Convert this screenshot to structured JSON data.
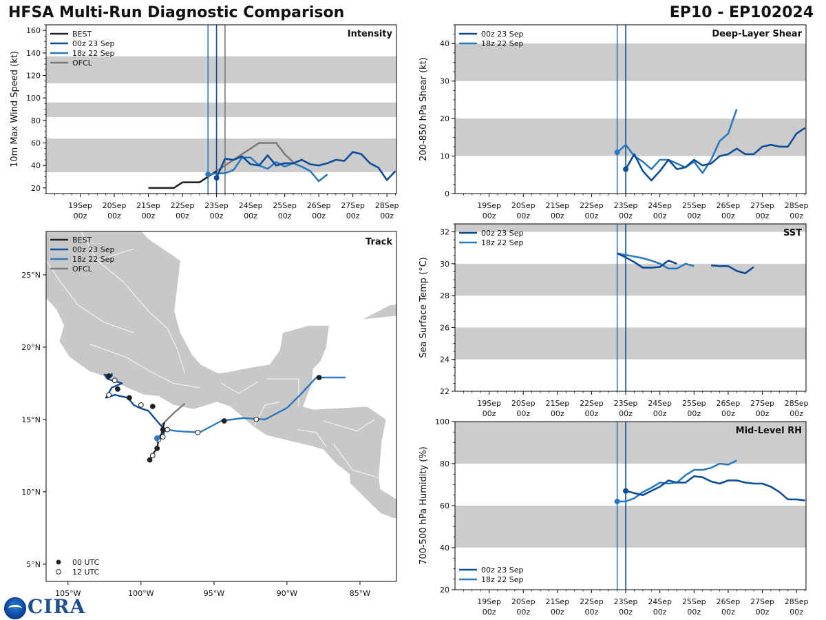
{
  "header": {
    "title": "HFSA Multi-Run Diagnostic Comparison",
    "storm_id": "EP10 - EP102024"
  },
  "colors": {
    "best": "#222222",
    "run00z": "#0b4c9a",
    "run18z": "#2a78bf",
    "ofcl": "#7a7a7a",
    "band": "#cccccc",
    "land": "#c8c8c8"
  },
  "time_axis": {
    "ticks": [
      {
        "day": 19,
        "top": "19Sep",
        "bottom": "00z"
      },
      {
        "day": 20,
        "top": "20Sep",
        "bottom": "00z"
      },
      {
        "day": 21,
        "top": "21Sep",
        "bottom": "00z"
      },
      {
        "day": 22,
        "top": "22Sep",
        "bottom": "00z"
      },
      {
        "day": 23,
        "top": "23Sep",
        "bottom": "00z"
      },
      {
        "day": 24,
        "top": "24Sep",
        "bottom": "00z"
      },
      {
        "day": 25,
        "top": "25Sep",
        "bottom": "00z"
      },
      {
        "day": 26,
        "top": "26Sep",
        "bottom": "00z"
      },
      {
        "day": 27,
        "top": "27Sep",
        "bottom": "00z"
      },
      {
        "day": 28,
        "top": "28Sep",
        "bottom": "00z"
      }
    ],
    "xlim": [
      18.0,
      28.28
    ],
    "init_18z": 22.75,
    "init_00z": 23.0,
    "init_ofcl": 23.25
  },
  "legend_labels": {
    "best": "BEST",
    "run00z": "00z 23 Sep",
    "run18z": "18z 22 Sep",
    "ofcl": "OFCL"
  },
  "chart_data": [
    {
      "id": "intensity",
      "type": "line",
      "title": "Intensity",
      "ylabel": "10m Max Wind Speed (kt)",
      "ylim": [
        15,
        165
      ],
      "yticks": [
        20,
        40,
        60,
        80,
        100,
        120,
        140,
        160
      ],
      "bands": [
        [
          34,
          64
        ],
        [
          83,
          96
        ],
        [
          113,
          137
        ]
      ],
      "series": [
        {
          "name": "BEST",
          "key": "best",
          "x": [
            21.0,
            21.25,
            21.5,
            21.75,
            22.0,
            22.25,
            22.5,
            22.75,
            23.0
          ],
          "y": [
            20,
            20,
            20,
            20,
            25,
            25,
            25,
            30,
            35
          ]
        },
        {
          "name": "00z 23 Sep",
          "key": "run00z",
          "x": [
            23.0,
            23.25,
            23.5,
            23.75,
            24.0,
            24.25,
            24.5,
            24.75,
            25.0,
            25.25,
            25.5,
            25.75,
            26.0,
            26.25,
            26.5,
            26.75,
            27.0,
            27.25,
            27.5,
            27.75,
            28.0,
            28.25
          ],
          "y": [
            29,
            46,
            45,
            48,
            41,
            40,
            49,
            40,
            42,
            42,
            45,
            41,
            40,
            42,
            45,
            44,
            52,
            50,
            42,
            38,
            27,
            35
          ],
          "marker": {
            "x": 23.0,
            "y": 29
          }
        },
        {
          "name": "18z 22 Sep",
          "key": "run18z",
          "x": [
            22.75,
            23.0,
            23.25,
            23.5,
            23.75,
            24.0,
            24.25,
            24.5,
            24.75,
            25.0,
            25.25,
            25.5,
            25.75,
            26.0,
            26.25
          ],
          "y": [
            32,
            33,
            33,
            36,
            47,
            47,
            40,
            37,
            43,
            39,
            42,
            39,
            35,
            26,
            32
          ],
          "marker": {
            "x": 22.75,
            "y": 32
          }
        },
        {
          "name": "OFCL",
          "key": "ofcl",
          "x": [
            23.0,
            23.25,
            23.5,
            23.75,
            24.0,
            24.25,
            24.5,
            24.75,
            25.0,
            25.25
          ],
          "y": [
            35,
            40,
            45,
            50,
            55,
            60,
            60,
            60,
            50,
            43
          ]
        }
      ]
    },
    {
      "id": "shear",
      "type": "line",
      "title": "Deep-Layer Shear",
      "ylabel": "200-850 hPa Shear (kt)",
      "ylim": [
        0,
        45
      ],
      "yticks": [
        0,
        10,
        20,
        30,
        40
      ],
      "bands": [
        [
          10,
          20
        ],
        [
          30,
          40
        ]
      ],
      "series": [
        {
          "name": "00z 23 Sep",
          "key": "run00z",
          "x": [
            23.0,
            23.25,
            23.5,
            23.75,
            24.0,
            24.25,
            24.5,
            24.75,
            25.0,
            25.25,
            25.5,
            25.75,
            26.0,
            26.25,
            26.5,
            26.75,
            27.0,
            27.25,
            27.5,
            27.75,
            28.0,
            28.25
          ],
          "y": [
            6.5,
            10.5,
            6,
            3.5,
            6,
            9,
            6.5,
            7,
            9,
            7.5,
            8,
            10,
            10.5,
            12,
            10.5,
            10.5,
            12.5,
            13,
            12.5,
            12.5,
            16,
            17.5
          ],
          "marker": {
            "x": 23.0,
            "y": 6.5
          }
        },
        {
          "name": "18z 22 Sep",
          "key": "run18z",
          "x": [
            22.75,
            23.0,
            23.25,
            23.5,
            23.75,
            24.0,
            24.25,
            24.5,
            24.75,
            25.0,
            25.25,
            25.5,
            25.75,
            26.0,
            26.25
          ],
          "y": [
            11,
            13,
            10,
            8.5,
            6.5,
            9,
            9,
            8,
            7,
            8.5,
            5.5,
            9,
            14,
            16,
            22.5
          ],
          "marker": {
            "x": 22.75,
            "y": 11
          }
        }
      ]
    },
    {
      "id": "sst",
      "type": "line",
      "title": "SST",
      "ylabel": "Sea Surface Temp (°C)",
      "ylim": [
        22,
        32.5
      ],
      "yticks": [
        22,
        24,
        26,
        28,
        30,
        32
      ],
      "bands": [
        [
          24,
          26
        ],
        [
          28,
          30
        ],
        [
          32,
          32.5
        ]
      ],
      "series": [
        {
          "name": "00z 23 Sep",
          "key": "run00z",
          "x": [
            22.75,
            23.0,
            23.25,
            23.5,
            23.75,
            24.0,
            24.25,
            24.5,
            24.75,
            null,
            25.5,
            25.75,
            26.0,
            26.25,
            26.5,
            26.75
          ],
          "y": [
            30.65,
            30.4,
            30.1,
            29.75,
            29.75,
            29.8,
            30.2,
            30.0,
            null,
            null,
            29.9,
            29.85,
            29.85,
            29.55,
            29.4,
            29.8
          ]
        },
        {
          "name": "18z 22 Sep",
          "key": "run18z",
          "x": [
            22.75,
            23.0,
            23.25,
            23.5,
            23.75,
            24.0,
            24.25,
            24.5,
            24.75,
            25.0
          ],
          "y": [
            30.65,
            30.55,
            30.45,
            30.35,
            30.2,
            30.0,
            29.7,
            29.7,
            30.0,
            29.85
          ]
        }
      ]
    },
    {
      "id": "rh",
      "type": "line",
      "title": "Mid-Level RH",
      "ylabel": "700-500 hPa Humidity (%)",
      "ylim": [
        20,
        100
      ],
      "yticks": [
        20,
        40,
        60,
        80,
        100
      ],
      "bands": [
        [
          40,
          60
        ],
        [
          80,
          100
        ]
      ],
      "series": [
        {
          "name": "00z 23 Sep",
          "key": "run00z",
          "x": [
            23.0,
            23.25,
            23.5,
            23.75,
            24.0,
            24.25,
            24.5,
            24.75,
            25.0,
            25.25,
            25.5,
            25.75,
            26.0,
            26.25,
            26.5,
            26.75,
            27.0,
            27.25,
            27.5,
            27.75,
            28.0,
            28.25
          ],
          "y": [
            67,
            66,
            65,
            67,
            69,
            72,
            71,
            71,
            74,
            73.5,
            71.5,
            70.5,
            72,
            72,
            71,
            70.5,
            70.5,
            69,
            66.5,
            63,
            63,
            62.5
          ],
          "marker": {
            "x": 23.0,
            "y": 67
          }
        },
        {
          "name": "18z 22 Sep",
          "key": "run18z",
          "x": [
            22.75,
            23.0,
            23.25,
            23.5,
            23.75,
            24.0,
            24.25,
            24.5,
            24.75,
            25.0,
            25.25,
            25.5,
            25.75,
            26.0,
            26.25
          ],
          "y": [
            62,
            62,
            63.5,
            66.5,
            68.5,
            71,
            70.5,
            71,
            74.5,
            77,
            77,
            78,
            80,
            79.5,
            81.5
          ],
          "marker": {
            "x": 22.75,
            "y": 62
          }
        }
      ]
    },
    {
      "id": "track",
      "type": "scatter",
      "title": "Track",
      "xlim": [
        -106.5,
        -82.5
      ],
      "ylim": [
        3.8,
        28
      ],
      "xticks": [
        {
          "value": -105,
          "label": "105°W"
        },
        {
          "value": -100,
          "label": "100°W"
        },
        {
          "value": -95,
          "label": "95°W"
        },
        {
          "value": -90,
          "label": "90°W"
        },
        {
          "value": -85,
          "label": "85°W"
        }
      ],
      "yticks": [
        {
          "value": 5,
          "label": "5°N"
        },
        {
          "value": 10,
          "label": "10°N"
        },
        {
          "value": 15,
          "label": "15°N"
        },
        {
          "value": 20,
          "label": "20°N"
        },
        {
          "value": 25,
          "label": "25°N"
        }
      ],
      "marker_legend": {
        "filled": "00 UTC",
        "open": "12 UTC"
      },
      "best": {
        "lon": [
          -99.4,
          -99.2,
          -98.9,
          -98.8,
          -98.6,
          -98.5,
          -98.4
        ],
        "lat": [
          12.2,
          12.6,
          13.0,
          13.6,
          14.0,
          14.4,
          14.8
        ],
        "points": [
          {
            "lon": -99.4,
            "lat": 12.2,
            "utc": 0
          },
          {
            "lon": -99.2,
            "lat": 12.5,
            "utc": 12
          },
          {
            "lon": -98.9,
            "lat": 13.0,
            "utc": 0
          },
          {
            "lon": -98.8,
            "lat": 13.6,
            "utc": 12
          },
          {
            "lon": -98.5,
            "lat": 14.3,
            "utc": 0
          }
        ]
      },
      "run00z": {
        "lon": [
          -98.5,
          -98.4,
          -99.0,
          -99.5,
          -100.1,
          -100.5,
          -100.9,
          -101.8,
          -102.4,
          -102.0,
          -101.3,
          -102.3,
          -102.5,
          -102.0,
          -102.0
        ],
        "lat": [
          13.8,
          14.3,
          15.0,
          15.6,
          15.8,
          16.0,
          16.5,
          16.7,
          16.5,
          17.2,
          17.5,
          17.8,
          18.1,
          18.0,
          18.2
        ],
        "points": [
          {
            "lon": -98.5,
            "lat": 13.8,
            "utc": 12
          },
          {
            "lon": -99.2,
            "lat": 15.9,
            "utc": 0
          },
          {
            "lon": -100.0,
            "lat": 16.0,
            "utc": 12
          },
          {
            "lon": -100.8,
            "lat": 16.5,
            "utc": 0
          },
          {
            "lon": -102.2,
            "lat": 16.7,
            "utc": 12
          },
          {
            "lon": -101.6,
            "lat": 17.1,
            "utc": 0
          },
          {
            "lon": -102.2,
            "lat": 18.0,
            "utc": 0
          },
          {
            "lon": -101.8,
            "lat": 17.7,
            "utc": 12
          }
        ]
      },
      "run18z": {
        "lon": [
          -98.9,
          -98.2,
          -97.6,
          -96.0,
          -94.5,
          -93.0,
          -91.5,
          -90.0,
          -89.0,
          -88.0,
          -86.0
        ],
        "lat": [
          13.7,
          14.3,
          14.2,
          14.1,
          14.9,
          15.1,
          15.0,
          15.8,
          16.8,
          17.9,
          17.9
        ],
        "points": [
          {
            "lon": -98.9,
            "lat": 13.7,
            "utc": 0
          },
          {
            "lon": -98.2,
            "lat": 14.3,
            "utc": 12
          },
          {
            "lon": -96.1,
            "lat": 14.1,
            "utc": 12
          },
          {
            "lon": -94.3,
            "lat": 14.9,
            "utc": 0
          },
          {
            "lon": -92.1,
            "lat": 15.0,
            "utc": 12
          },
          {
            "lon": -87.8,
            "lat": 17.9,
            "utc": 0
          }
        ]
      },
      "ofcl": {
        "lon": [
          -98.6,
          -97.8,
          -97.0
        ],
        "lat": [
          14.6,
          15.4,
          16.1
        ]
      }
    }
  ]
}
